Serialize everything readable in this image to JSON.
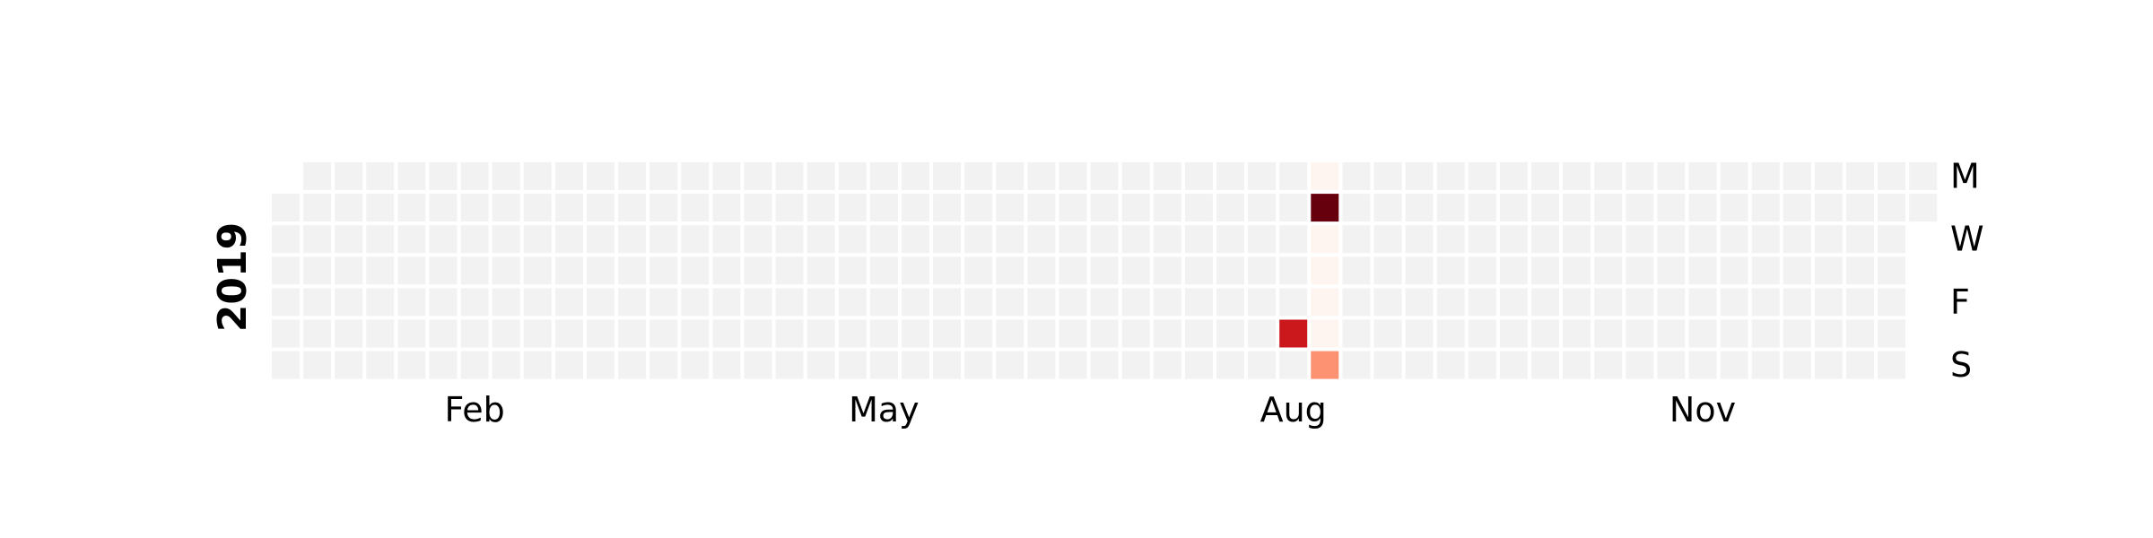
{
  "chart_data": {
    "type": "heatmap",
    "year_label": "2019",
    "day_labels": [
      "M",
      "W",
      "F",
      "S"
    ],
    "month_labels": [
      "Feb",
      "May",
      "Aug",
      "Nov"
    ],
    "empty_color": "#f2f2f2",
    "colormap": "Reds",
    "cells": [
      {
        "date": "2019-08-17",
        "color": "#cb181d"
      },
      {
        "date": "2019-08-19",
        "color": "#fff5f0"
      },
      {
        "date": "2019-08-20",
        "color": "#67000d"
      },
      {
        "date": "2019-08-21",
        "color": "#fff5f0"
      },
      {
        "date": "2019-08-22",
        "color": "#fff5f0"
      },
      {
        "date": "2019-08-23",
        "color": "#fff5f0"
      },
      {
        "date": "2019-08-24",
        "color": "#fff5f0"
      },
      {
        "date": "2019-08-25",
        "color": "#fc9272"
      }
    ]
  }
}
